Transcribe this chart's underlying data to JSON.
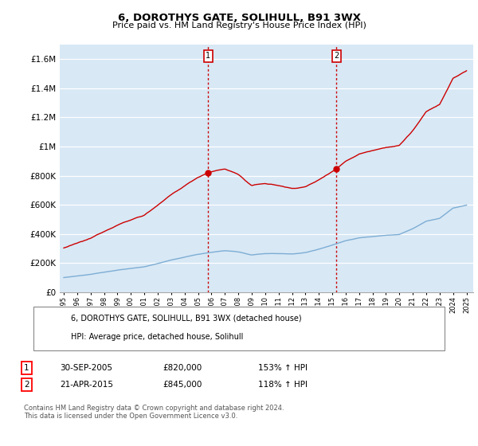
{
  "title": "6, DOROTHYS GATE, SOLIHULL, B91 3WX",
  "subtitle": "Price paid vs. HM Land Registry's House Price Index (HPI)",
  "ylim": [
    0,
    1700000
  ],
  "yticks": [
    0,
    200000,
    400000,
    600000,
    800000,
    1000000,
    1200000,
    1400000,
    1600000
  ],
  "ytick_labels": [
    "£0",
    "£200K",
    "£400K",
    "£600K",
    "£800K",
    "£1M",
    "£1.2M",
    "£1.4M",
    "£1.6M"
  ],
  "sale1_date_num": 2005.75,
  "sale1_price": 820000,
  "sale1_label": "1",
  "sale1_date_str": "30-SEP-2005",
  "sale1_pct": "153%",
  "sale2_date_num": 2015.3,
  "sale2_price": 845000,
  "sale2_label": "2",
  "sale2_date_str": "21-APR-2015",
  "sale2_pct": "118%",
  "legend1_label": "6, DOROTHYS GATE, SOLIHULL, B91 3WX (detached house)",
  "legend2_label": "HPI: Average price, detached house, Solihull",
  "footer": "Contains HM Land Registry data © Crown copyright and database right 2024.\nThis data is licensed under the Open Government Licence v3.0.",
  "line_color_red": "#cc0000",
  "line_color_blue": "#7dadd4",
  "background_color": "#d8e8f5",
  "plot_bg": "#ffffff",
  "vline_color": "#cc0000",
  "xlim_left": 1994.7,
  "xlim_right": 2025.5
}
